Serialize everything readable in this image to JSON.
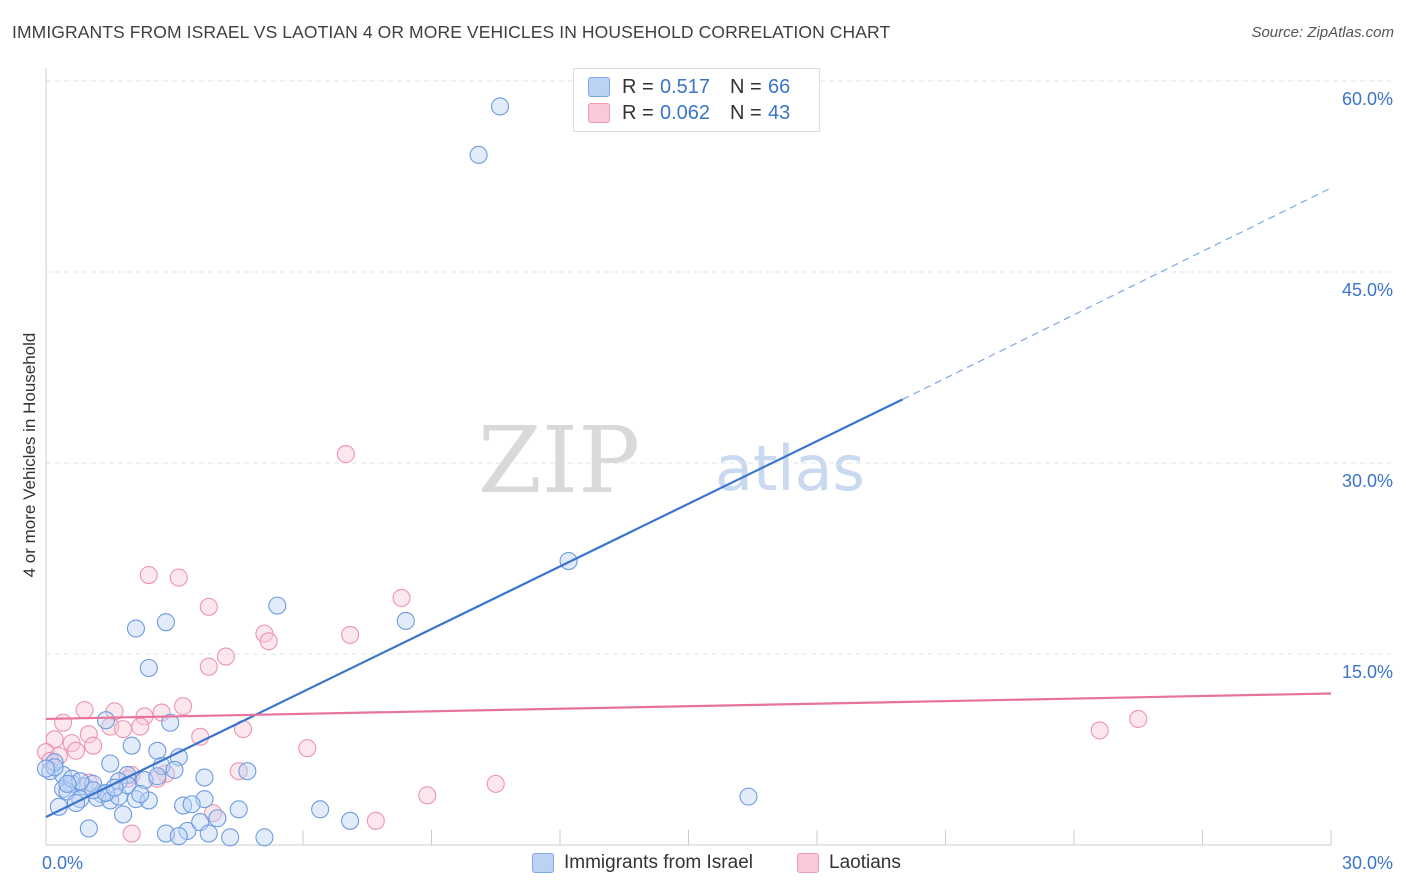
{
  "title": "IMMIGRANTS FROM ISRAEL VS LAOTIAN 4 OR MORE VEHICLES IN HOUSEHOLD CORRELATION CHART",
  "source": "Source: ZipAtlas.com",
  "watermark": {
    "zip": "ZIP",
    "atlas": "atlas"
  },
  "colors": {
    "blue": "#3a74cc",
    "blue_fill": "#bcd2f3",
    "pink": "#e8729a",
    "pink_fill": "#f9c9d8",
    "grid": "#dde3ec"
  },
  "legend": {
    "rows": [
      {
        "r_label": "R =",
        "r_value": "0.517",
        "n_label": "N =",
        "n_value": "66"
      },
      {
        "r_label": "R =",
        "r_value": "0.062",
        "n_label": "N =",
        "n_value": "43"
      }
    ]
  },
  "chart_data": {
    "type": "scatter",
    "title": "IMMIGRANTS FROM ISRAEL VS LAOTIAN 4 OR MORE VEHICLES IN HOUSEHOLD CORRELATION CHART",
    "xlabel": "",
    "ylabel": "4 or more Vehicles in Household",
    "xlim": [
      0,
      30
    ],
    "ylim": [
      0,
      60
    ],
    "x_tick_labels": [
      "0.0%",
      "30.0%"
    ],
    "y_tick_labels": [
      "15.0%",
      "30.0%",
      "45.0%",
      "60.0%"
    ],
    "y_ticks": [
      15,
      30,
      45,
      60
    ],
    "grid": true,
    "legend_position": "top-center",
    "series": [
      {
        "name": "Immigrants from Israel",
        "color": "#3a74cc",
        "trend": {
          "x0": 0.0,
          "y0": 2.2,
          "x1": 20.0,
          "y1": 35.0,
          "dashed_to_x": 30.0,
          "dashed_to_y": 51.6
        },
        "points": [
          [
            10.6,
            58.0
          ],
          [
            10.1,
            54.2
          ],
          [
            12.2,
            22.3
          ],
          [
            5.4,
            18.8
          ],
          [
            8.4,
            17.6
          ],
          [
            2.1,
            17.0
          ],
          [
            2.8,
            17.5
          ],
          [
            2.4,
            13.9
          ],
          [
            1.4,
            9.8
          ],
          [
            2.9,
            9.6
          ],
          [
            2.0,
            7.8
          ],
          [
            2.6,
            7.4
          ],
          [
            3.1,
            6.9
          ],
          [
            2.7,
            6.2
          ],
          [
            1.5,
            6.4
          ],
          [
            4.7,
            5.8
          ],
          [
            3.7,
            5.3
          ],
          [
            1.9,
            5.5
          ],
          [
            2.3,
            5.1
          ],
          [
            1.7,
            5.0
          ],
          [
            0.1,
            5.8
          ],
          [
            0.4,
            5.5
          ],
          [
            0.2,
            6.5
          ],
          [
            0.6,
            4.8
          ],
          [
            0.9,
            4.6
          ],
          [
            1.1,
            4.8
          ],
          [
            0.4,
            4.4
          ],
          [
            0.5,
            4.2
          ],
          [
            1.3,
            4.0
          ],
          [
            1.2,
            3.7
          ],
          [
            0.8,
            3.6
          ],
          [
            1.5,
            3.5
          ],
          [
            1.7,
            3.8
          ],
          [
            0.7,
            3.3
          ],
          [
            2.1,
            3.6
          ],
          [
            3.7,
            3.6
          ],
          [
            3.2,
            3.1
          ],
          [
            4.5,
            2.8
          ],
          [
            6.4,
            2.8
          ],
          [
            7.1,
            1.9
          ],
          [
            0.3,
            3.0
          ],
          [
            1.0,
            1.3
          ],
          [
            3.3,
            1.1
          ],
          [
            3.6,
            1.8
          ],
          [
            4.0,
            2.1
          ],
          [
            3.8,
            0.9
          ],
          [
            2.8,
            0.9
          ],
          [
            3.1,
            0.7
          ],
          [
            4.3,
            0.6
          ],
          [
            5.1,
            0.6
          ],
          [
            1.8,
            2.4
          ],
          [
            16.4,
            3.8
          ],
          [
            0.2,
            6.1
          ],
          [
            0.6,
            5.2
          ],
          [
            1.1,
            4.3
          ],
          [
            1.4,
            4.1
          ],
          [
            2.4,
            3.5
          ],
          [
            0.0,
            6.0
          ],
          [
            0.8,
            5.0
          ],
          [
            2.6,
            5.4
          ],
          [
            3.0,
            5.9
          ],
          [
            1.9,
            4.7
          ],
          [
            0.5,
            4.8
          ],
          [
            1.6,
            4.5
          ],
          [
            2.2,
            4.0
          ],
          [
            3.4,
            3.2
          ]
        ]
      },
      {
        "name": "Laotians",
        "color": "#e8729a",
        "trend": {
          "x0": 0.0,
          "y0": 9.9,
          "x1": 30.0,
          "y1": 11.9
        },
        "points": [
          [
            7.0,
            30.7
          ],
          [
            2.4,
            21.2
          ],
          [
            3.1,
            21.0
          ],
          [
            8.3,
            19.4
          ],
          [
            3.8,
            18.7
          ],
          [
            7.1,
            16.5
          ],
          [
            5.1,
            16.6
          ],
          [
            5.2,
            16.0
          ],
          [
            4.2,
            14.8
          ],
          [
            3.8,
            14.0
          ],
          [
            0.9,
            10.6
          ],
          [
            1.6,
            10.5
          ],
          [
            2.3,
            10.1
          ],
          [
            3.2,
            10.9
          ],
          [
            2.7,
            10.4
          ],
          [
            0.4,
            9.6
          ],
          [
            1.5,
            9.3
          ],
          [
            1.8,
            9.1
          ],
          [
            2.2,
            9.3
          ],
          [
            1.0,
            8.7
          ],
          [
            4.6,
            9.1
          ],
          [
            3.6,
            8.5
          ],
          [
            0.2,
            8.3
          ],
          [
            0.6,
            8.0
          ],
          [
            1.1,
            7.8
          ],
          [
            6.1,
            7.6
          ],
          [
            0.7,
            7.4
          ],
          [
            0.0,
            7.3
          ],
          [
            0.3,
            7.0
          ],
          [
            0.1,
            6.6
          ],
          [
            2.8,
            5.6
          ],
          [
            2.0,
            5.5
          ],
          [
            4.5,
            5.8
          ],
          [
            2.6,
            5.2
          ],
          [
            1.9,
            5.2
          ],
          [
            1.0,
            4.9
          ],
          [
            10.5,
            4.8
          ],
          [
            8.9,
            3.9
          ],
          [
            3.9,
            2.5
          ],
          [
            7.7,
            1.9
          ],
          [
            2.0,
            0.9
          ],
          [
            25.5,
            9.9
          ],
          [
            24.6,
            9.0
          ]
        ]
      }
    ]
  },
  "bottom_legend": [
    "Immigrants from Israel",
    "Laotians"
  ]
}
